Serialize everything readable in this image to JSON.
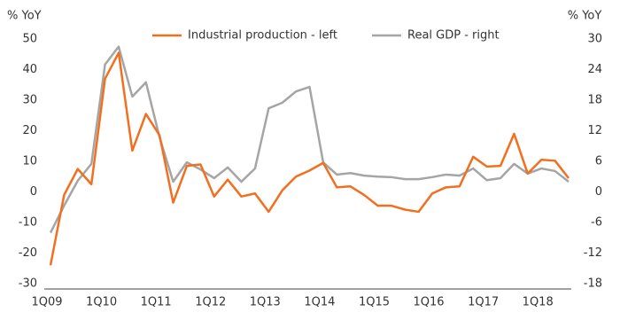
{
  "chart_data": {
    "type": "line",
    "y_label": "% YoY",
    "y2_label": "% YoY",
    "categories": [
      "1Q09",
      null,
      null,
      null,
      "1Q10",
      null,
      null,
      null,
      "1Q11",
      null,
      null,
      null,
      "1Q12",
      null,
      null,
      null,
      "1Q13",
      null,
      null,
      null,
      "1Q14",
      null,
      null,
      null,
      "1Q15",
      null,
      null,
      null,
      "1Q16",
      null,
      null,
      null,
      "1Q17",
      null,
      null,
      null,
      "1Q18",
      null,
      null
    ],
    "series": [
      {
        "name": "Industrial production - left",
        "color": "#f26f1f",
        "axis": "y",
        "values": [
          -24,
          -1,
          7.5,
          2.5,
          37,
          45.5,
          13.5,
          25.5,
          18.5,
          -3.5,
          8.5,
          9,
          -1.5,
          4,
          -1.5,
          -0.5,
          -6.5,
          0.5,
          5,
          7,
          9.5,
          1.5,
          1.8,
          -1,
          -4.5,
          -4.5,
          -5.8,
          -6.5,
          -0.5,
          1.5,
          1.8,
          11.5,
          8.3,
          8.5,
          19,
          6,
          10.5,
          10.2,
          4.5
        ]
      },
      {
        "name": "Real GDP - right",
        "color": "#a5a5a5",
        "axis": "y2",
        "values": [
          -8,
          -2.7,
          2.2,
          5.5,
          25,
          28.5,
          18.7,
          21.5,
          10.7,
          2,
          5.8,
          4.4,
          2.7,
          4.8,
          2,
          4.6,
          16.4,
          17.5,
          19.7,
          20.6,
          5.8,
          3.4,
          3.7,
          3.2,
          3,
          2.9,
          2.5,
          2.5,
          2.9,
          3.4,
          3.2,
          4.6,
          2.3,
          2.7,
          5.5,
          3.6,
          4.6,
          4.1,
          2
        ]
      }
    ],
    "ylim": [
      -30,
      50
    ],
    "yticks": [
      -30,
      -20,
      -10,
      0,
      10,
      20,
      30,
      40,
      50
    ],
    "y2lim": [
      -18,
      30
    ],
    "y2ticks": [
      -18,
      -12,
      -6,
      0,
      6,
      12,
      18,
      24,
      30
    ],
    "legend": "top"
  }
}
